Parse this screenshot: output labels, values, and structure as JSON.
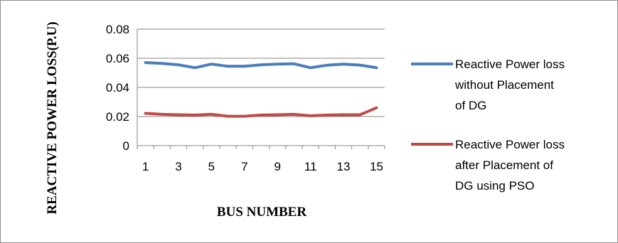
{
  "chart_data": {
    "type": "line",
    "title": "",
    "xlabel": "BUS NUMBER",
    "ylabel": "REACTIVE POWER LOSS(P.U)",
    "x": [
      1,
      2,
      3,
      4,
      5,
      6,
      7,
      8,
      9,
      10,
      11,
      12,
      13,
      14,
      15
    ],
    "x_tick_labels": [
      "1",
      "3",
      "5",
      "7",
      "9",
      "11",
      "13",
      "15"
    ],
    "y_ticks": [
      "0",
      "0.02",
      "0.04",
      "0.06",
      "0.08"
    ],
    "ylim": [
      0,
      0.08
    ],
    "grid": "horizontal",
    "legend_position": "right",
    "series": [
      {
        "name": "Reactive Power loss without Placement of DG",
        "legend_lines": [
          "Reactive Power loss",
          "without Placement",
          "of DG"
        ],
        "color": "#4a7ebb",
        "values": [
          0.057,
          0.0565,
          0.0555,
          0.0535,
          0.056,
          0.0545,
          0.0545,
          0.0555,
          0.056,
          0.0562,
          0.0535,
          0.0552,
          0.056,
          0.0553,
          0.0535
        ]
      },
      {
        "name": "Reactive Power loss after Placement of DG using PSO",
        "legend_lines": [
          "Reactive Power loss",
          "after  Placement of",
          "DG using PSO"
        ],
        "color": "#be4b48",
        "values": [
          0.0222,
          0.0215,
          0.0212,
          0.021,
          0.0215,
          0.0202,
          0.0202,
          0.021,
          0.0212,
          0.0215,
          0.0205,
          0.021,
          0.0212,
          0.0212,
          0.026
        ]
      }
    ]
  }
}
